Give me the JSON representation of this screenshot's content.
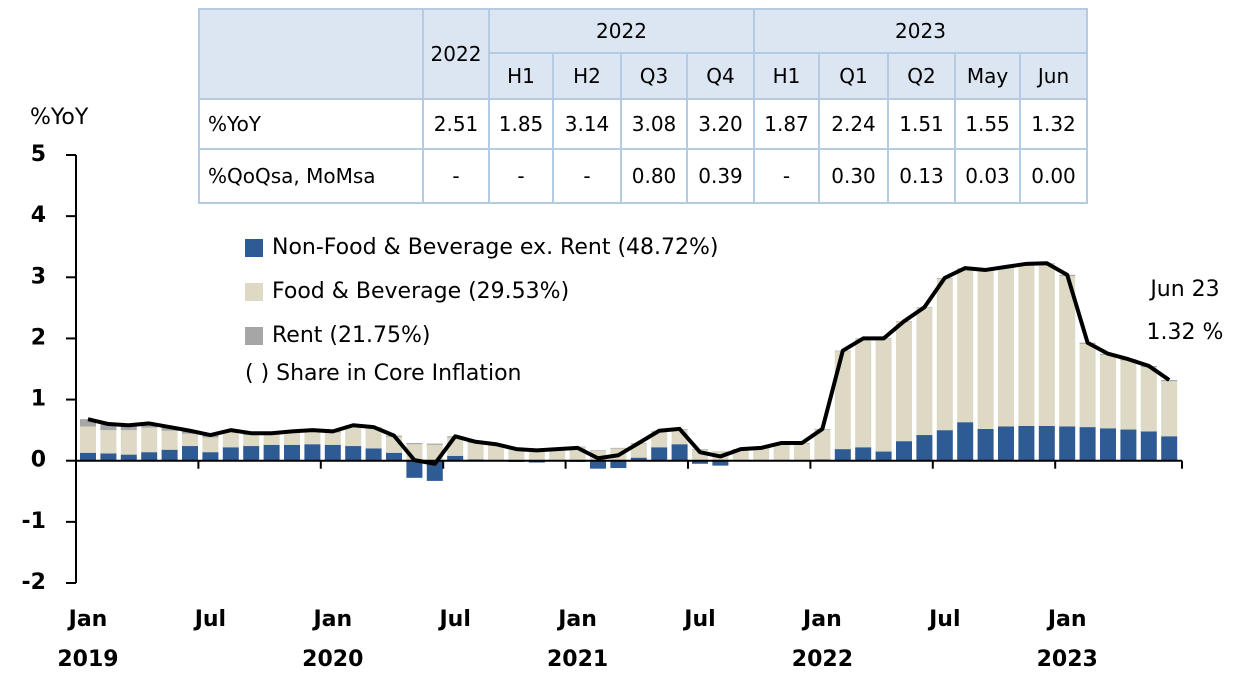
{
  "chart_data": {
    "type": "bar",
    "y_label": "%YoY",
    "categories": [
      "Jan 2019",
      null,
      null,
      null,
      null,
      null,
      "Jul",
      null,
      null,
      null,
      null,
      null,
      "Jan 2020",
      null,
      null,
      null,
      null,
      null,
      "Jul",
      null,
      null,
      null,
      null,
      null,
      "Jan 2021",
      null,
      null,
      null,
      null,
      null,
      "Jul",
      null,
      null,
      null,
      null,
      null,
      "Jan 2022",
      null,
      null,
      null,
      null,
      null,
      "Jul",
      null,
      null,
      null,
      null,
      null,
      "Jan 2023",
      null,
      null,
      null,
      null,
      null
    ],
    "series": [
      {
        "name": "Non-Food & Beverage ex. Rent (48.72%)",
        "color": "#2e5b94",
        "type": "bar",
        "values": [
          0.13,
          0.12,
          0.1,
          0.14,
          0.18,
          0.24,
          0.14,
          0.22,
          0.24,
          0.26,
          0.26,
          0.27,
          0.26,
          0.24,
          0.2,
          0.13,
          -0.28,
          -0.33,
          0.08,
          0.02,
          0.0,
          -0.02,
          -0.03,
          -0.01,
          -0.02,
          -0.13,
          -0.12,
          0.05,
          0.22,
          0.27,
          -0.05,
          -0.08,
          0.0,
          0.0,
          0.01,
          0.0,
          0.02,
          0.19,
          0.22,
          0.15,
          0.32,
          0.42,
          0.5,
          0.63,
          0.52,
          0.56,
          0.57,
          0.57,
          0.56,
          0.55,
          0.53,
          0.51,
          0.48,
          0.4
        ]
      },
      {
        "name": "Food & Beverage (29.53%)",
        "color": "#ddd9c4",
        "type": "bar",
        "values": [
          0.43,
          0.38,
          0.4,
          0.4,
          0.31,
          0.2,
          0.24,
          0.25,
          0.18,
          0.17,
          0.2,
          0.21,
          0.2,
          0.32,
          0.33,
          0.26,
          0.27,
          0.26,
          0.3,
          0.27,
          0.25,
          0.19,
          0.18,
          0.18,
          0.22,
          0.16,
          0.2,
          0.23,
          0.26,
          0.24,
          0.18,
          0.14,
          0.18,
          0.2,
          0.27,
          0.28,
          0.49,
          1.6,
          1.77,
          1.84,
          1.95,
          2.08,
          2.48,
          2.51,
          2.59,
          2.6,
          2.64,
          2.65,
          2.46,
          1.36,
          1.2,
          1.13,
          1.05,
          0.9
        ]
      },
      {
        "name": "Rent (21.75%)",
        "color": "#a6a6a6",
        "type": "bar",
        "values": [
          0.12,
          0.1,
          0.08,
          0.07,
          0.06,
          0.05,
          0.04,
          0.03,
          0.03,
          0.02,
          0.02,
          0.02,
          0.02,
          0.02,
          0.02,
          0.02,
          0.02,
          0.02,
          0.02,
          0.02,
          0.02,
          0.02,
          0.02,
          0.02,
          0.01,
          0.01,
          0.01,
          0.01,
          0.01,
          0.01,
          0.01,
          0.01,
          0.01,
          0.01,
          0.01,
          0.01,
          0.01,
          0.01,
          0.01,
          0.01,
          0.01,
          0.01,
          0.01,
          0.01,
          0.01,
          0.01,
          0.01,
          0.01,
          0.02,
          0.02,
          0.02,
          0.02,
          0.02,
          0.02
        ]
      },
      {
        "color": "#000000",
        "type": "line",
        "values": [
          0.68,
          0.6,
          0.58,
          0.61,
          0.55,
          0.49,
          0.42,
          0.5,
          0.45,
          0.45,
          0.48,
          0.5,
          0.48,
          0.58,
          0.55,
          0.41,
          0.01,
          -0.05,
          0.4,
          0.31,
          0.27,
          0.19,
          0.17,
          0.19,
          0.21,
          0.04,
          0.09,
          0.29,
          0.49,
          0.52,
          0.14,
          0.07,
          0.19,
          0.21,
          0.29,
          0.29,
          0.52,
          1.8,
          2.0,
          2.0,
          2.28,
          2.51,
          2.99,
          3.15,
          3.12,
          3.17,
          3.22,
          3.23,
          3.04,
          1.93,
          1.75,
          1.66,
          1.55,
          1.32
        ]
      }
    ],
    "legend_note": "( ) Share in Core Inflation",
    "annotation": {
      "title": "Jun 23",
      "value": 1.32,
      "value_label": "1.32 %"
    },
    "ylim": [
      -2,
      5
    ],
    "yticks": [
      -2,
      -1,
      0,
      1,
      2,
      3,
      4,
      5
    ]
  },
  "table": {
    "header": [
      "2022",
      "2022",
      "2023"
    ],
    "subheader": [
      "H1",
      "H2",
      "Q3",
      "Q4",
      "H1",
      "Q1",
      "Q2",
      "May",
      "Jun"
    ],
    "rows": [
      [
        "%YoY",
        "2.51",
        "1.85",
        "3.14",
        "3.08",
        "3.20",
        "1.87",
        "2.24",
        "1.51",
        "1.55",
        "1.32"
      ],
      [
        "%QoQsa, MoMsa",
        "-",
        "-",
        "-",
        "0.80",
        "0.39",
        "-",
        "0.30",
        "0.13",
        "0.03",
        "0.00"
      ]
    ]
  }
}
